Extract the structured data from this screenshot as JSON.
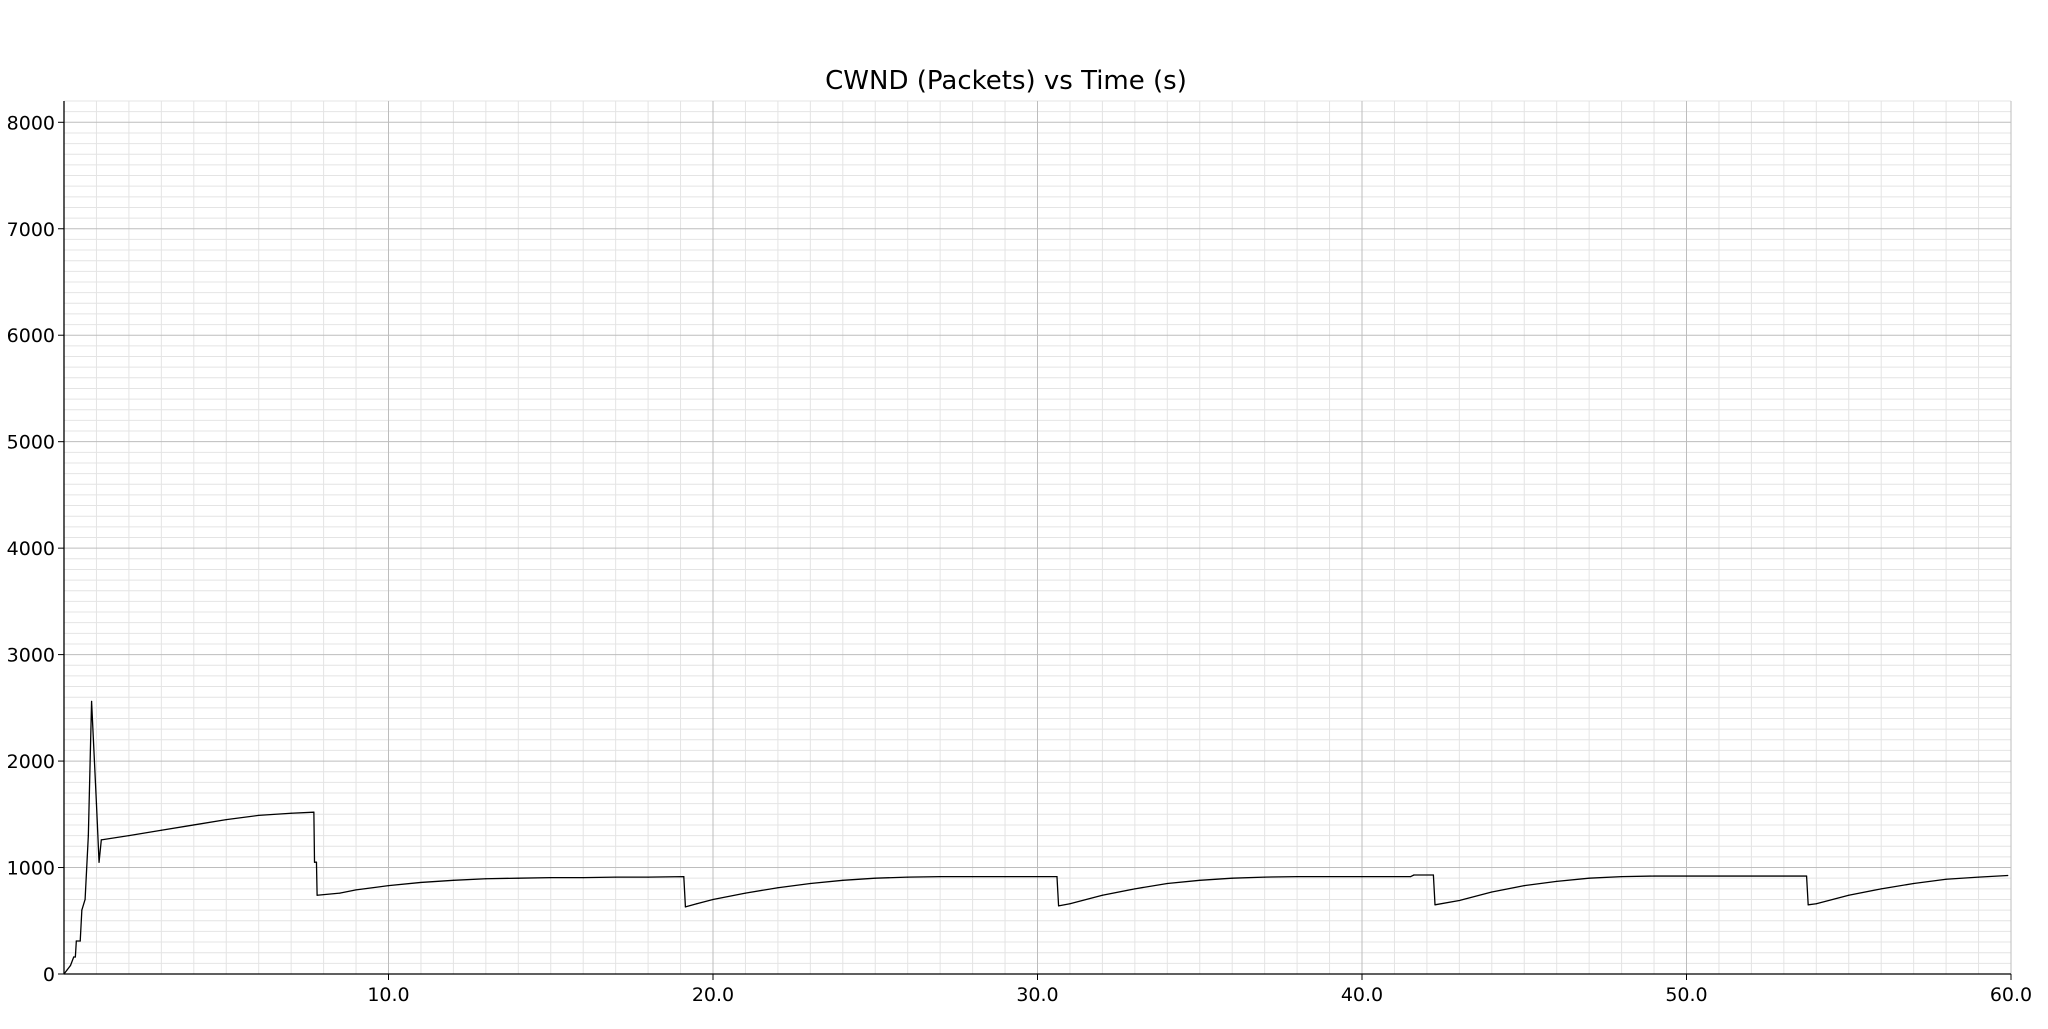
{
  "chart_data": {
    "type": "line",
    "title": "CWND (Packets) vs Time (s)",
    "xlabel": "",
    "ylabel": "",
    "xlim": [
      0.0,
      60.0
    ],
    "ylim": [
      0,
      8200
    ],
    "x_ticks": [
      10.0,
      20.0,
      30.0,
      40.0,
      50.0,
      60.0
    ],
    "x_tick_labels": [
      "10.0",
      "20.0",
      "30.0",
      "40.0",
      "50.0",
      "60.0"
    ],
    "y_ticks": [
      0,
      1000,
      2000,
      3000,
      4000,
      5000,
      6000,
      7000,
      8000
    ],
    "y_tick_labels": [
      "0",
      "1000",
      "2000",
      "3000",
      "4000",
      "5000",
      "6000",
      "7000",
      "8000"
    ],
    "grid": true,
    "line_color": "#000000",
    "series": [
      {
        "name": "CWND",
        "points": [
          [
            0.0,
            0
          ],
          [
            0.1,
            40
          ],
          [
            0.2,
            80
          ],
          [
            0.3,
            160
          ],
          [
            0.35,
            160
          ],
          [
            0.38,
            310
          ],
          [
            0.5,
            310
          ],
          [
            0.55,
            600
          ],
          [
            0.65,
            700
          ],
          [
            0.75,
            1300
          ],
          [
            0.85,
            2560
          ],
          [
            1.0,
            1600
          ],
          [
            1.08,
            1050
          ],
          [
            1.15,
            1260
          ],
          [
            2.0,
            1300
          ],
          [
            3.0,
            1350
          ],
          [
            4.0,
            1400
          ],
          [
            5.0,
            1450
          ],
          [
            6.0,
            1490
          ],
          [
            7.0,
            1510
          ],
          [
            7.7,
            1520
          ],
          [
            7.72,
            1050
          ],
          [
            7.78,
            1050
          ],
          [
            7.8,
            740
          ],
          [
            8.5,
            760
          ],
          [
            9.0,
            790
          ],
          [
            10.0,
            830
          ],
          [
            11.0,
            860
          ],
          [
            12.0,
            880
          ],
          [
            13.0,
            895
          ],
          [
            14.0,
            900
          ],
          [
            15.0,
            905
          ],
          [
            16.0,
            905
          ],
          [
            17.0,
            910
          ],
          [
            18.0,
            910
          ],
          [
            19.1,
            915
          ],
          [
            19.15,
            630
          ],
          [
            19.5,
            660
          ],
          [
            20.0,
            700
          ],
          [
            21.0,
            760
          ],
          [
            22.0,
            810
          ],
          [
            23.0,
            850
          ],
          [
            24.0,
            880
          ],
          [
            25.0,
            900
          ],
          [
            26.0,
            910
          ],
          [
            27.0,
            915
          ],
          [
            28.0,
            915
          ],
          [
            29.0,
            915
          ],
          [
            30.6,
            915
          ],
          [
            30.65,
            640
          ],
          [
            31.0,
            660
          ],
          [
            32.0,
            740
          ],
          [
            33.0,
            800
          ],
          [
            34.0,
            850
          ],
          [
            35.0,
            880
          ],
          [
            36.0,
            900
          ],
          [
            37.0,
            910
          ],
          [
            38.0,
            915
          ],
          [
            40.0,
            915
          ],
          [
            41.5,
            915
          ],
          [
            41.6,
            930
          ],
          [
            42.2,
            930
          ],
          [
            42.25,
            650
          ],
          [
            43.0,
            690
          ],
          [
            44.0,
            770
          ],
          [
            45.0,
            830
          ],
          [
            46.0,
            870
          ],
          [
            47.0,
            900
          ],
          [
            48.0,
            915
          ],
          [
            49.0,
            920
          ],
          [
            50.0,
            920
          ],
          [
            51.0,
            920
          ],
          [
            53.7,
            920
          ],
          [
            53.75,
            650
          ],
          [
            54.0,
            660
          ],
          [
            55.0,
            740
          ],
          [
            56.0,
            800
          ],
          [
            57.0,
            850
          ],
          [
            58.0,
            890
          ],
          [
            59.0,
            910
          ],
          [
            59.9,
            925
          ]
        ]
      }
    ]
  }
}
